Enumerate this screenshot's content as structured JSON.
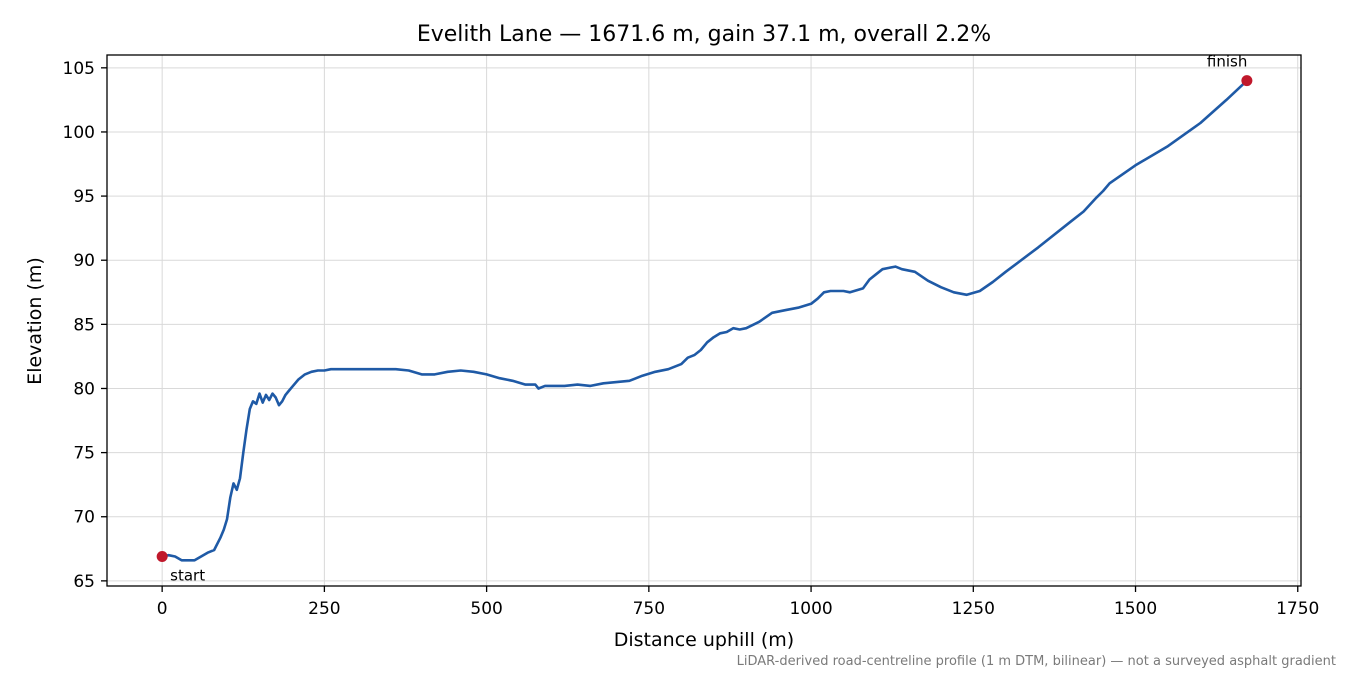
{
  "chart_data": {
    "type": "line",
    "title": "Evelith Lane — 1671.6 m, gain 37.1 m, overall 2.2%",
    "xlabel": "Distance uphill (m)",
    "ylabel": "Elevation (m)",
    "xlim": [
      -85,
      1755
    ],
    "ylim": [
      64.6,
      106
    ],
    "x_ticks": [
      0,
      250,
      500,
      750,
      1000,
      1250,
      1500,
      1750
    ],
    "y_ticks": [
      65,
      70,
      75,
      80,
      85,
      90,
      95,
      100,
      105
    ],
    "grid": true,
    "line_color": "#1f5aa6",
    "marker_color": "#c0182b",
    "series": [
      {
        "x": [
          0,
          10,
          20,
          30,
          40,
          50,
          60,
          70,
          80,
          90,
          95,
          100,
          105,
          110,
          115,
          120,
          125,
          130,
          135,
          140,
          145,
          150,
          155,
          160,
          165,
          170,
          175,
          180,
          185,
          190,
          195,
          200,
          210,
          220,
          230,
          240,
          250,
          260,
          280,
          300,
          320,
          340,
          360,
          380,
          400,
          420,
          440,
          460,
          480,
          500,
          520,
          540,
          560,
          575,
          580,
          590,
          600,
          620,
          640,
          660,
          680,
          700,
          720,
          740,
          760,
          780,
          800,
          810,
          820,
          830,
          840,
          850,
          860,
          870,
          880,
          890,
          900,
          920,
          940,
          960,
          980,
          1000,
          1010,
          1020,
          1030,
          1040,
          1050,
          1060,
          1080,
          1090,
          1100,
          1110,
          1120,
          1130,
          1140,
          1160,
          1180,
          1200,
          1220,
          1240,
          1260,
          1280,
          1300,
          1350,
          1400,
          1420,
          1440,
          1450,
          1460,
          1500,
          1550,
          1600,
          1640,
          1671.6
        ],
        "y": [
          66.9,
          67.0,
          66.9,
          66.6,
          66.6,
          66.6,
          66.9,
          67.2,
          67.4,
          68.4,
          69.0,
          69.8,
          71.5,
          72.6,
          72.1,
          73.0,
          75.0,
          76.8,
          78.4,
          79.0,
          78.8,
          79.6,
          78.9,
          79.5,
          79.1,
          79.6,
          79.3,
          78.7,
          79.0,
          79.5,
          79.8,
          80.1,
          80.7,
          81.1,
          81.3,
          81.4,
          81.4,
          81.5,
          81.5,
          81.5,
          81.5,
          81.5,
          81.5,
          81.4,
          81.1,
          81.1,
          81.3,
          81.4,
          81.3,
          81.1,
          80.8,
          80.6,
          80.3,
          80.3,
          80.0,
          80.2,
          80.2,
          80.2,
          80.3,
          80.2,
          80.4,
          80.5,
          80.6,
          81.0,
          81.3,
          81.5,
          81.9,
          82.4,
          82.6,
          83.0,
          83.6,
          84.0,
          84.3,
          84.4,
          84.7,
          84.6,
          84.7,
          85.2,
          85.9,
          86.1,
          86.3,
          86.6,
          87.0,
          87.5,
          87.6,
          87.6,
          87.6,
          87.5,
          87.8,
          88.5,
          88.9,
          89.3,
          89.4,
          89.5,
          89.3,
          89.1,
          88.4,
          87.9,
          87.5,
          87.3,
          87.6,
          88.3,
          89.1,
          91.0,
          93.0,
          93.8,
          94.9,
          95.4,
          96.0,
          97.4,
          98.9,
          100.7,
          102.5,
          104.0
        ]
      }
    ],
    "annotations": [
      {
        "label": "start",
        "x": 0,
        "y": 66.9
      },
      {
        "label": "finish",
        "x": 1671.6,
        "y": 104.0
      }
    ],
    "footnote": "LiDAR-derived road-centreline profile (1 m DTM, bilinear) — not a surveyed asphalt gradient"
  }
}
